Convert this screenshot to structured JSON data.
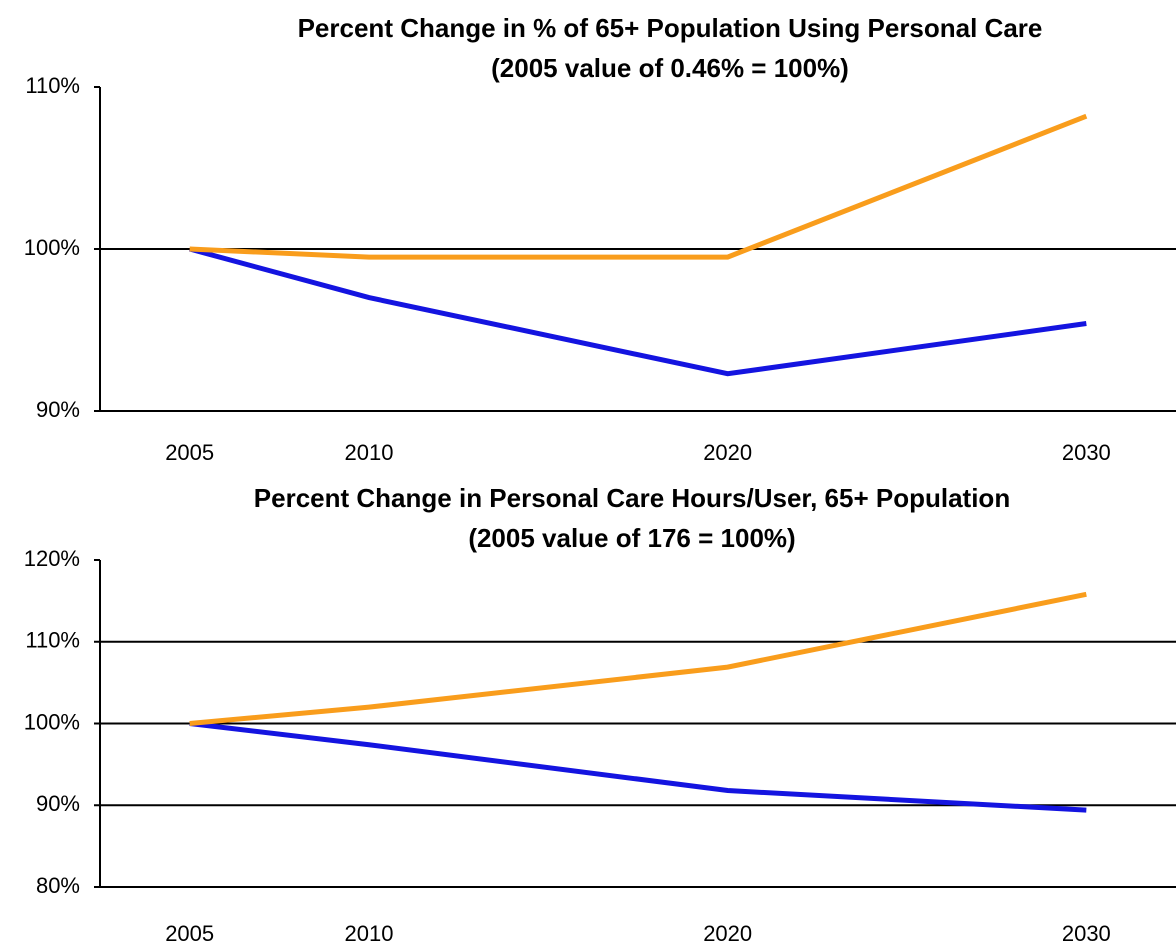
{
  "chart_data": [
    {
      "type": "line",
      "title": "Percent Change in % of 65+ Population Using Personal Care",
      "subtitle": "(2005 value of 0.46% = 100%)",
      "x": [
        2005,
        2010,
        2020,
        2030
      ],
      "xlim": [
        2002.5,
        2032.5
      ],
      "xticks": [
        2005,
        2010,
        2020,
        2030
      ],
      "ylim": [
        90,
        110
      ],
      "yticks": [
        {
          "value": 90,
          "label": "90%"
        },
        {
          "value": 100,
          "label": "100%"
        },
        {
          "value": 110,
          "label": "110%"
        }
      ],
      "grid": true,
      "series": [
        {
          "color": "#1414e0",
          "values": [
            100,
            97,
            92.3,
            95.4
          ]
        },
        {
          "color": "#f99d1c",
          "values": [
            100,
            99.5,
            99.5,
            108.2
          ]
        }
      ]
    },
    {
      "type": "line",
      "title": "Percent Change in Personal Care Hours/User, 65+ Population",
      "subtitle": "(2005 value of 176 = 100%)",
      "x": [
        2005,
        2010,
        2020,
        2030
      ],
      "xlim": [
        2002.5,
        2032.5
      ],
      "xticks": [
        2005,
        2010,
        2020,
        2030
      ],
      "ylim": [
        80,
        120
      ],
      "yticks": [
        {
          "value": 80,
          "label": "80%"
        },
        {
          "value": 90,
          "label": "90%"
        },
        {
          "value": 100,
          "label": "100%"
        },
        {
          "value": 110,
          "label": "110%"
        },
        {
          "value": 120,
          "label": "120%"
        }
      ],
      "grid": true,
      "series": [
        {
          "color": "#1414e0",
          "values": [
            100,
            97.4,
            91.8,
            89.4
          ]
        },
        {
          "color": "#f99d1c",
          "values": [
            100,
            102,
            106.9,
            115.8
          ]
        }
      ]
    }
  ]
}
